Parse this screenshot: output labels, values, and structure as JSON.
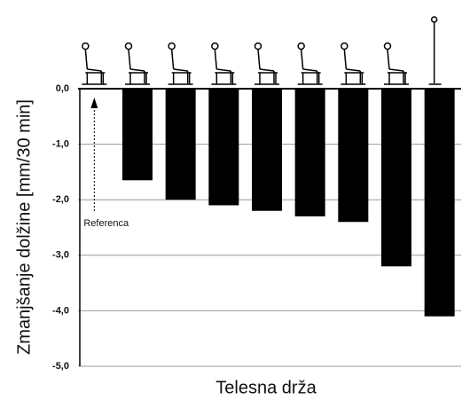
{
  "chart_data": {
    "type": "bar",
    "x_label": "Telesna drža",
    "y_label": "Zmanjšanje dolžine [mm/30 min]",
    "annotation": "Referenca",
    "categories": [
      null,
      null,
      null,
      null,
      null,
      null,
      null,
      null,
      null
    ],
    "values": [
      0,
      -1.65,
      -2.0,
      -2.1,
      -2.2,
      -2.3,
      -2.4,
      -3.2,
      -4.1
    ],
    "color": "#000000",
    "ylim": [
      -5,
      0
    ],
    "yticks": [
      {
        "value": 0,
        "label": "0,0"
      },
      {
        "value": -1,
        "label": "-1,0"
      },
      {
        "value": -2,
        "label": "-2,0"
      },
      {
        "value": -3,
        "label": "-3,0"
      },
      {
        "value": -4,
        "label": "-4,0"
      },
      {
        "value": -5,
        "label": "-5,0"
      }
    ],
    "grid": true
  }
}
